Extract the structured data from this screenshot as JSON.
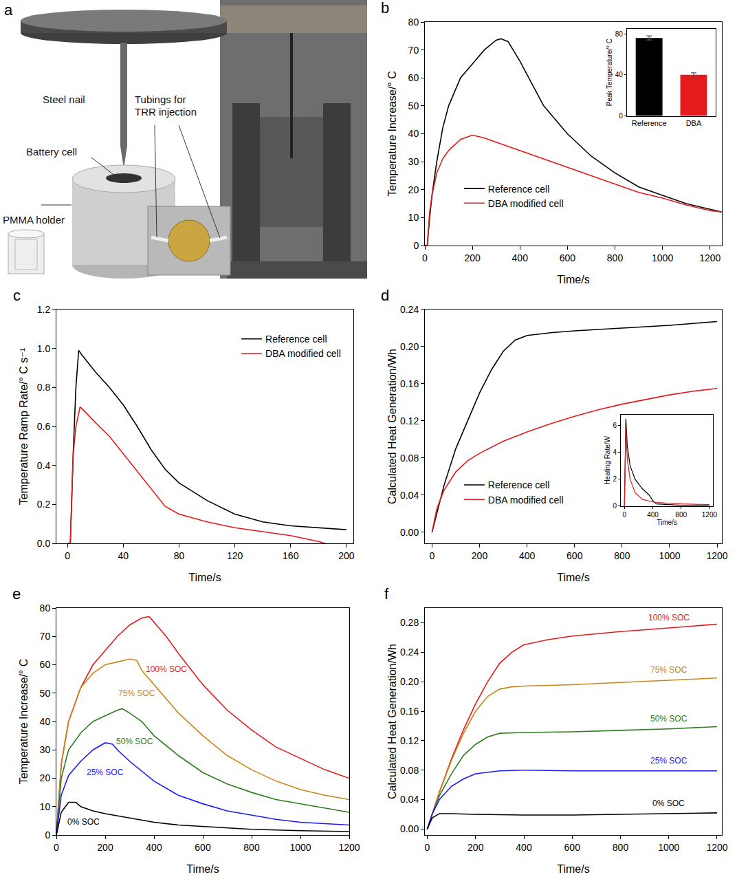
{
  "diagram": {
    "panel": "a",
    "labels": {
      "nail": "Steel nail",
      "cell": "Battery cell",
      "tubing": "Tubings for TRR injection",
      "holder": "PMMA holder"
    }
  },
  "chart_data": [
    {
      "panel": "b",
      "type": "line",
      "x_label": "Time/s",
      "y_label": "Temperature Increase/° C",
      "xlim": [
        0,
        1250
      ],
      "xticks": [
        0,
        200,
        400,
        600,
        800,
        1000,
        1200
      ],
      "ylim": [
        0,
        80
      ],
      "yticks": [
        0,
        10,
        20,
        30,
        40,
        50,
        60,
        70,
        80
      ],
      "grid": false,
      "legend": "lower left",
      "series": [
        {
          "name": "Reference cell",
          "color": "#000000",
          "x": [
            0,
            10,
            20,
            30,
            50,
            75,
            100,
            150,
            200,
            250,
            300,
            320,
            350,
            400,
            450,
            500,
            600,
            700,
            800,
            900,
            1000,
            1100,
            1200,
            1250
          ],
          "values": [
            0,
            0,
            10,
            18,
            30,
            42,
            50,
            60,
            65,
            70,
            73.5,
            74,
            73,
            66,
            58,
            50,
            40,
            32,
            26,
            21,
            18,
            15,
            13,
            12
          ]
        },
        {
          "name": "DBA modified cell",
          "color": "#e41a1c",
          "x": [
            0,
            10,
            20,
            30,
            50,
            75,
            100,
            150,
            200,
            250,
            300,
            400,
            500,
            600,
            700,
            800,
            900,
            1000,
            1100,
            1200,
            1250
          ],
          "values": [
            0,
            0,
            12,
            18,
            26,
            31,
            34,
            38,
            39.5,
            38.5,
            37,
            34,
            31,
            28,
            25,
            22,
            19,
            17,
            14.5,
            12.5,
            12
          ]
        }
      ],
      "inset": {
        "type": "bar",
        "y_label": "Peak Temperature/° C",
        "categories": [
          "Reference",
          "DBA"
        ],
        "values": [
          76,
          40
        ],
        "errors": [
          2,
          2
        ],
        "colors": [
          "#000000",
          "#e41a1c"
        ],
        "ylim": [
          0,
          85
        ],
        "yticks": [
          0,
          40,
          80
        ]
      }
    },
    {
      "panel": "c",
      "type": "line",
      "x_label": "Time/s",
      "y_label": "Temperature Ramp Rate/° C s⁻¹",
      "xlim": [
        -8,
        205
      ],
      "xticks": [
        0,
        40,
        80,
        120,
        160,
        200
      ],
      "ylim": [
        0,
        1.2
      ],
      "yticks": [
        {
          "value": 0,
          "label": "0.0"
        },
        0.2,
        0.4,
        0.6,
        0.8,
        {
          "value": 1,
          "label": "1.0"
        },
        1.2
      ],
      "grid": false,
      "legend": "upper right",
      "series": [
        {
          "name": "Reference cell",
          "color": "#000000",
          "x": [
            0,
            2,
            4,
            6,
            8,
            10,
            20,
            30,
            40,
            50,
            60,
            70,
            80,
            100,
            120,
            140,
            160,
            180,
            200
          ],
          "values": [
            0,
            0,
            0.45,
            0.8,
            0.99,
            0.97,
            0.88,
            0.8,
            0.71,
            0.6,
            0.48,
            0.38,
            0.31,
            0.22,
            0.15,
            0.11,
            0.09,
            0.08,
            0.07
          ]
        },
        {
          "name": "DBA modified cell",
          "color": "#e41a1c",
          "x": [
            0,
            2,
            4,
            6,
            9,
            12,
            20,
            30,
            40,
            50,
            60,
            70,
            80,
            100,
            120,
            140,
            160,
            180,
            185
          ],
          "values": [
            0,
            0,
            0.45,
            0.6,
            0.7,
            0.68,
            0.62,
            0.55,
            0.46,
            0.37,
            0.28,
            0.19,
            0.15,
            0.11,
            0.08,
            0.06,
            0.04,
            0.01,
            0
          ]
        }
      ]
    },
    {
      "panel": "d",
      "type": "line",
      "x_label": "Time/s",
      "y_label": "Calculated Heat Generation/Wh",
      "xlim": [
        -30,
        1220
      ],
      "xticks": [
        0,
        200,
        400,
        600,
        800,
        1000,
        1200
      ],
      "ylim": [
        -0.012,
        0.24
      ],
      "yticks": [
        {
          "value": 0,
          "label": "0.00"
        },
        0.04,
        0.08,
        0.12,
        0.16,
        {
          "value": 0.2,
          "label": "0.20"
        },
        0.24
      ],
      "grid": false,
      "legend": "lower left",
      "series": [
        {
          "name": "Reference cell",
          "color": "#000000",
          "x": [
            0,
            20,
            50,
            100,
            150,
            200,
            250,
            300,
            350,
            400,
            500,
            600,
            800,
            1000,
            1200
          ],
          "values": [
            0,
            0.02,
            0.05,
            0.09,
            0.12,
            0.15,
            0.175,
            0.195,
            0.207,
            0.212,
            0.215,
            0.217,
            0.22,
            0.223,
            0.227
          ]
        },
        {
          "name": "DBA modified cell",
          "color": "#e41a1c",
          "x": [
            0,
            20,
            50,
            100,
            150,
            200,
            300,
            400,
            500,
            600,
            700,
            800,
            900,
            1000,
            1100,
            1200
          ],
          "values": [
            0,
            0.025,
            0.045,
            0.065,
            0.077,
            0.085,
            0.098,
            0.108,
            0.117,
            0.125,
            0.132,
            0.138,
            0.143,
            0.148,
            0.152,
            0.155
          ]
        }
      ],
      "inset": {
        "type": "line",
        "x_label": "Time/s",
        "y_label": "Heating Rate/W",
        "xlim": [
          -50,
          1250
        ],
        "xticks": [
          0,
          400,
          800,
          1200
        ],
        "ylim": [
          0,
          6.8
        ],
        "yticks": [
          0,
          2,
          4,
          6
        ],
        "series": [
          {
            "name": "Reference cell",
            "color": "#000000",
            "x": [
              0,
              20,
              40,
              80,
              150,
              250,
              350,
              400,
              450,
              600,
              800,
              1200
            ],
            "values": [
              0,
              6.5,
              4.5,
              3,
              2,
              1.3,
              0.8,
              0.4,
              0.15,
              0.1,
              0.05,
              0.05
            ]
          },
          {
            "name": "DBA modified cell",
            "color": "#e41a1c",
            "x": [
              0,
              20,
              40,
              80,
              150,
              250,
              400,
              600,
              800,
              1200
            ],
            "values": [
              0,
              5.8,
              3.5,
              2,
              1,
              0.5,
              0.3,
              0.2,
              0.15,
              0.1
            ]
          }
        ]
      }
    },
    {
      "panel": "e",
      "type": "line",
      "x_label": "Time/s",
      "y_label": "Temperature Increase/° C",
      "xlim": [
        0,
        1200
      ],
      "xticks": [
        0,
        200,
        400,
        600,
        800,
        1000,
        1200
      ],
      "ylim": [
        0,
        80
      ],
      "yticks": [
        0,
        10,
        20,
        30,
        40,
        50,
        60,
        70,
        80
      ],
      "grid": false,
      "legend": "inline",
      "series": [
        {
          "name": "100% SOC",
          "color": "#e41a1c",
          "x": [
            0,
            20,
            50,
            100,
            150,
            200,
            250,
            300,
            350,
            380,
            400,
            450,
            500,
            600,
            700,
            800,
            900,
            1000,
            1100,
            1200
          ],
          "values": [
            0,
            25,
            40,
            52,
            60,
            65,
            70,
            74,
            76.5,
            77,
            75,
            70,
            64,
            53,
            44,
            37,
            31,
            27,
            23,
            20
          ]
        },
        {
          "name": "75% SOC",
          "color": "#c8861a",
          "x": [
            0,
            20,
            50,
            100,
            150,
            200,
            250,
            300,
            330,
            350,
            400,
            500,
            600,
            700,
            800,
            900,
            1000,
            1100,
            1200
          ],
          "values": [
            0,
            25,
            40,
            52,
            57,
            60,
            61,
            62,
            61.5,
            58,
            53,
            43,
            35,
            28,
            23,
            19,
            16,
            14,
            12.5
          ]
        },
        {
          "name": "50% SOC",
          "color": "#2e7d1e",
          "x": [
            0,
            20,
            50,
            100,
            150,
            200,
            250,
            270,
            300,
            350,
            400,
            500,
            600,
            700,
            800,
            900,
            1000,
            1100,
            1200
          ],
          "values": [
            0,
            20,
            30,
            36,
            40,
            42,
            44,
            44.5,
            43,
            40,
            35,
            28,
            22,
            18,
            15,
            12.5,
            11,
            9.5,
            8
          ]
        },
        {
          "name": "25% SOC",
          "color": "#1a1aff",
          "x": [
            0,
            20,
            50,
            100,
            150,
            200,
            230,
            250,
            300,
            400,
            500,
            600,
            700,
            800,
            900,
            1000,
            1100,
            1200
          ],
          "values": [
            0,
            14,
            21,
            26,
            30,
            32.5,
            32,
            30,
            26,
            19,
            14,
            11,
            8.5,
            7,
            5.5,
            4.5,
            4,
            3.5
          ]
        },
        {
          "name": "0% SOC",
          "color": "#000000",
          "x": [
            0,
            20,
            50,
            80,
            100,
            150,
            200,
            300,
            400,
            500,
            600,
            700,
            800,
            1000,
            1200
          ],
          "values": [
            0,
            8,
            11.5,
            11.5,
            10,
            8.5,
            7.5,
            6,
            4.5,
            3.5,
            3,
            2.5,
            2,
            1.5,
            1.2
          ]
        }
      ]
    },
    {
      "panel": "f",
      "type": "line",
      "x_label": "Time/s",
      "y_label": "Calculated Heat Generation/Wh",
      "xlim": [
        -10,
        1220
      ],
      "xticks": [
        0,
        200,
        400,
        600,
        800,
        1000,
        1200
      ],
      "ylim": [
        -0.008,
        0.3
      ],
      "yticks": [
        {
          "value": 0,
          "label": "0.00"
        },
        0.04,
        0.08,
        0.12,
        0.16,
        {
          "value": 0.2,
          "label": "0.20"
        },
        0.24,
        0.28
      ],
      "grid": false,
      "legend": "inline",
      "series": [
        {
          "name": "100% SOC",
          "color": "#e41a1c",
          "x": [
            0,
            20,
            50,
            100,
            150,
            200,
            250,
            300,
            350,
            400,
            500,
            600,
            800,
            1000,
            1200
          ],
          "values": [
            0,
            0.02,
            0.05,
            0.095,
            0.135,
            0.17,
            0.2,
            0.225,
            0.24,
            0.25,
            0.257,
            0.262,
            0.268,
            0.273,
            0.278
          ]
        },
        {
          "name": "75% SOC",
          "color": "#c8861a",
          "x": [
            0,
            20,
            50,
            100,
            150,
            200,
            250,
            300,
            350,
            400,
            600,
            800,
            1000,
            1200
          ],
          "values": [
            0,
            0.02,
            0.05,
            0.093,
            0.13,
            0.16,
            0.18,
            0.19,
            0.193,
            0.194,
            0.196,
            0.199,
            0.202,
            0.205
          ]
        },
        {
          "name": "50% SOC",
          "color": "#2e7d1e",
          "x": [
            0,
            20,
            50,
            100,
            150,
            200,
            250,
            300,
            400,
            600,
            800,
            1000,
            1200
          ],
          "values": [
            0,
            0.02,
            0.045,
            0.075,
            0.1,
            0.115,
            0.125,
            0.13,
            0.131,
            0.132,
            0.134,
            0.136,
            0.139
          ]
        },
        {
          "name": "25% SOC",
          "color": "#1a1aff",
          "x": [
            0,
            20,
            50,
            100,
            150,
            200,
            300,
            400,
            600,
            800,
            1000,
            1200
          ],
          "values": [
            0,
            0.02,
            0.04,
            0.058,
            0.068,
            0.075,
            0.079,
            0.08,
            0.079,
            0.079,
            0.079,
            0.079
          ]
        },
        {
          "name": "0% SOC",
          "color": "#000000",
          "x": [
            0,
            20,
            50,
            100,
            200,
            400,
            600,
            800,
            1000,
            1200
          ],
          "values": [
            0,
            0.015,
            0.021,
            0.021,
            0.02,
            0.019,
            0.019,
            0.02,
            0.021,
            0.022
          ]
        }
      ]
    }
  ]
}
